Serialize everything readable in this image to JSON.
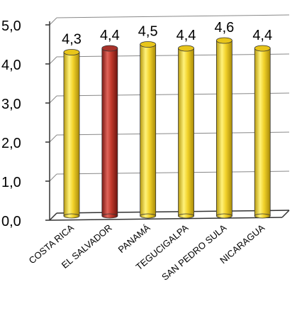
{
  "chart_data": {
    "type": "bar",
    "categories": [
      "COSTA RICA",
      "EL SALVADOR",
      "PANAMÁ",
      "TEGUCIGALPA",
      "SAN PEDRO SULA",
      "NICARAGUA"
    ],
    "values": [
      4.3,
      4.4,
      4.5,
      4.4,
      4.6,
      4.4
    ],
    "value_labels": [
      "4,3",
      "4,4",
      "4,5",
      "4,4",
      "4,6",
      "4,4"
    ],
    "y_ticks": [
      "0,0",
      "1,0",
      "2,0",
      "3,0",
      "4,0",
      "5,0"
    ],
    "ylim": [
      0,
      5
    ],
    "grid": true,
    "bar_style": "3d-cylinder",
    "colors": {
      "default_bar": "#f2d22a",
      "highlight_bar": "#c0392b",
      "highlight_category": "EL SALVADOR",
      "axis": "#333333",
      "grid": "#888888"
    }
  }
}
